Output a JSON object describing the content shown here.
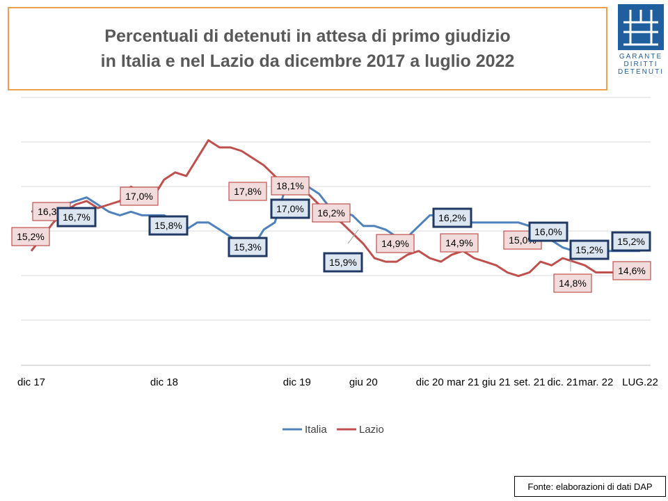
{
  "title": {
    "line1": "Percentuali di detenuti in attesa di primo giudizio",
    "line2": "in Italia e nel Lazio da dicembre 2017 a luglio 2022"
  },
  "logo": {
    "lines": [
      "GARANTE",
      "DIRITTI",
      "DETENUTI"
    ],
    "color": "#1f5f9e"
  },
  "source": "Fonte: elaborazioni di dati DAP",
  "chart_data": {
    "type": "line",
    "x": [
      0,
      1,
      2,
      3,
      4,
      5,
      6,
      7,
      8,
      9,
      10,
      11,
      12,
      13,
      14,
      15,
      16,
      17,
      18,
      19,
      20,
      21,
      22,
      23,
      24,
      25,
      26,
      27,
      28,
      29,
      30,
      31,
      32,
      33,
      34,
      35,
      36,
      37,
      38,
      39,
      40,
      41,
      42,
      43,
      44,
      45,
      46,
      47,
      48,
      49,
      50,
      51,
      52,
      53,
      54,
      55
    ],
    "tick_labels": [
      {
        "x": 0,
        "label": "dic 17"
      },
      {
        "x": 12,
        "label": "dic 18"
      },
      {
        "x": 24,
        "label": "dic 19"
      },
      {
        "x": 30,
        "label": "giu 20"
      },
      {
        "x": 36,
        "label": "dic 20"
      },
      {
        "x": 39,
        "label": "mar 21"
      },
      {
        "x": 42,
        "label": "giu 21"
      },
      {
        "x": 45,
        "label": "set. 21"
      },
      {
        "x": 48,
        "label": "dic. 21"
      },
      {
        "x": 51,
        "label": "mar. 22"
      },
      {
        "x": 55,
        "label": "LUG.22"
      }
    ],
    "ylim": [
      12.0,
      19.5
    ],
    "grid": true,
    "legend_position": "bottom",
    "series": [
      {
        "name": "Italia",
        "color": "#4f81bd",
        "points": [
          [
            0,
            16.3
          ],
          [
            1,
            16.4
          ],
          [
            2,
            16.4
          ],
          [
            3,
            16.5
          ],
          [
            4,
            16.6
          ],
          [
            5,
            16.7
          ],
          [
            6,
            16.5
          ],
          [
            7,
            16.3
          ],
          [
            8,
            16.2
          ],
          [
            9,
            16.3
          ],
          [
            10,
            16.2
          ],
          [
            11,
            16.2
          ],
          [
            12,
            16.2
          ],
          [
            13,
            16.0
          ],
          [
            14,
            15.8
          ],
          [
            15,
            16.0
          ],
          [
            16,
            16.0
          ],
          [
            17,
            15.8
          ],
          [
            18,
            15.6
          ],
          [
            19,
            15.4
          ],
          [
            20,
            15.3
          ],
          [
            21,
            15.8
          ],
          [
            22,
            16.0
          ],
          [
            23,
            17.0
          ],
          [
            24,
            17.1
          ],
          [
            25,
            17.0
          ],
          [
            26,
            16.8
          ],
          [
            27,
            16.4
          ],
          [
            28,
            16.3
          ],
          [
            29,
            16.2
          ],
          [
            30,
            15.9
          ],
          [
            31,
            15.9
          ],
          [
            32,
            15.8
          ],
          [
            33,
            15.6
          ],
          [
            34,
            15.6
          ],
          [
            35,
            15.9
          ],
          [
            36,
            16.2
          ],
          [
            37,
            16.2
          ],
          [
            38,
            16.2
          ],
          [
            39,
            16.0
          ],
          [
            40,
            16.0
          ],
          [
            41,
            16.0
          ],
          [
            42,
            16.0
          ],
          [
            43,
            16.0
          ],
          [
            44,
            16.0
          ],
          [
            45,
            15.9
          ],
          [
            46,
            15.7
          ],
          [
            47,
            15.5
          ],
          [
            48,
            15.3
          ],
          [
            49,
            15.2
          ],
          [
            50,
            15.2
          ],
          [
            51,
            15.2
          ],
          [
            52,
            15.2
          ],
          [
            53,
            15.2
          ],
          [
            54,
            15.2
          ],
          [
            55,
            15.2
          ]
        ]
      },
      {
        "name": "Lazio",
        "color": "#c0504d",
        "points": [
          [
            0,
            15.2
          ],
          [
            1,
            15.6
          ],
          [
            2,
            16.0
          ],
          [
            3,
            16.3
          ],
          [
            4,
            16.5
          ],
          [
            5,
            16.6
          ],
          [
            6,
            16.4
          ],
          [
            7,
            16.5
          ],
          [
            8,
            16.6
          ],
          [
            9,
            17.0
          ],
          [
            10,
            16.8
          ],
          [
            11,
            16.7
          ],
          [
            12,
            17.2
          ],
          [
            13,
            17.4
          ],
          [
            14,
            17.3
          ],
          [
            15,
            17.8
          ],
          [
            16,
            18.3
          ],
          [
            17,
            18.1
          ],
          [
            18,
            18.1
          ],
          [
            19,
            18.0
          ],
          [
            20,
            17.8
          ],
          [
            21,
            17.6
          ],
          [
            22,
            17.3
          ],
          [
            23,
            17.0
          ],
          [
            24,
            16.9
          ],
          [
            25,
            16.8
          ],
          [
            26,
            16.5
          ],
          [
            27,
            16.2
          ],
          [
            28,
            16.0
          ],
          [
            29,
            15.7
          ],
          [
            30,
            15.4
          ],
          [
            31,
            15.0
          ],
          [
            32,
            14.9
          ],
          [
            33,
            14.9
          ],
          [
            34,
            15.1
          ],
          [
            35,
            15.2
          ],
          [
            36,
            15.0
          ],
          [
            37,
            14.9
          ],
          [
            38,
            15.1
          ],
          [
            39,
            15.2
          ],
          [
            40,
            15.0
          ],
          [
            41,
            14.9
          ],
          [
            42,
            14.8
          ],
          [
            43,
            14.6
          ],
          [
            44,
            14.5
          ],
          [
            45,
            14.6
          ],
          [
            46,
            14.9
          ],
          [
            47,
            14.8
          ],
          [
            48,
            15.0
          ],
          [
            49,
            14.9
          ],
          [
            50,
            14.8
          ],
          [
            51,
            14.6
          ],
          [
            52,
            14.6
          ],
          [
            53,
            14.6
          ],
          [
            54,
            14.6
          ],
          [
            55,
            14.6
          ]
        ]
      }
    ],
    "data_labels": [
      {
        "series": "Lazio",
        "label": "15,2%"
      },
      {
        "series": "Lazio",
        "label": "16,3%"
      },
      {
        "series": "Italia",
        "label": "16,7%"
      },
      {
        "series": "Lazio",
        "label": "17,0%"
      },
      {
        "series": "Italia",
        "label": "15,8%"
      },
      {
        "series": "Italia",
        "label": "15,3%"
      },
      {
        "series": "Lazio",
        "label": "17,8%"
      },
      {
        "series": "Lazio",
        "label": "18,1%"
      },
      {
        "series": "Italia",
        "label": "17,0%"
      },
      {
        "series": "Lazio",
        "label": "16,2%"
      },
      {
        "series": "Italia",
        "label": "15,9%"
      },
      {
        "series": "Lazio",
        "label": "14,9%"
      },
      {
        "series": "Italia",
        "label": "16,2%"
      },
      {
        "series": "Lazio",
        "label": "14,9%"
      },
      {
        "series": "Lazio",
        "label": "15,0%"
      },
      {
        "series": "Italia",
        "label": "16,0%"
      },
      {
        "series": "Lazio",
        "label": "14,8%"
      },
      {
        "series": "Italia",
        "label": "15,2%"
      },
      {
        "series": "Italia",
        "label": "15,2%"
      },
      {
        "series": "Lazio",
        "label": "14,6%"
      }
    ]
  }
}
